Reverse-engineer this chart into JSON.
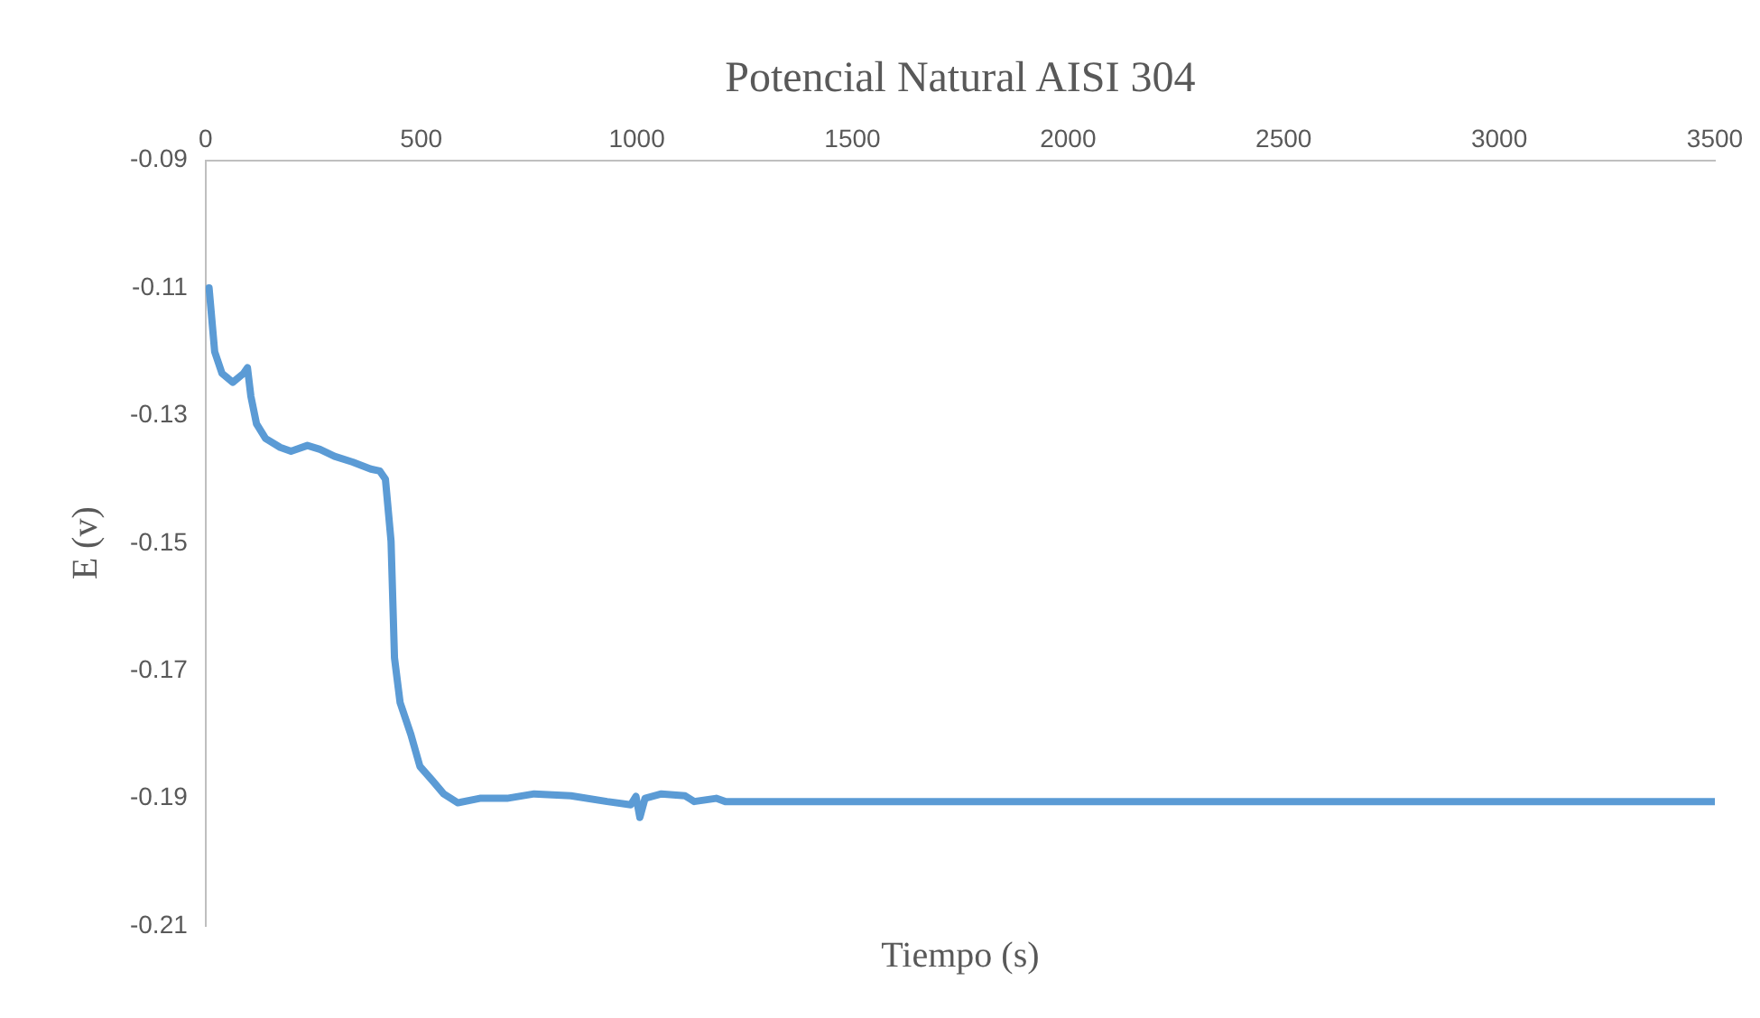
{
  "chart_data": {
    "type": "line",
    "title": "Potencial Natural AISI 304",
    "xlabel": "Tiempo (s)",
    "ylabel": "E (v)",
    "xlim": [
      0,
      3500
    ],
    "xticks": [
      0,
      500,
      1000,
      1500,
      2000,
      2500,
      3000,
      3500
    ],
    "ylim": [
      -0.21,
      -0.09
    ],
    "yticks": [
      -0.21,
      -0.19,
      -0.17,
      -0.15,
      -0.13,
      -0.11,
      -0.09
    ],
    "grid": false,
    "legend": false,
    "marker": "none",
    "line_style": "solid",
    "series": [
      {
        "color": "#5b9bd5",
        "x": [
          8,
          21,
          38,
          63,
          88,
          97,
          105,
          118,
          139,
          173,
          198,
          236,
          265,
          299,
          341,
          383,
          404,
          417,
          430,
          438,
          451,
          476,
          497,
          527,
          552,
          585,
          636,
          699,
          762,
          847,
          931,
          986,
          998,
          1007,
          1019,
          1057,
          1112,
          1133,
          1184,
          1205,
          3500
        ],
        "values": [
          -0.11,
          -0.12,
          -0.1234,
          -0.1248,
          -0.1234,
          -0.1225,
          -0.127,
          -0.1313,
          -0.1336,
          -0.135,
          -0.1356,
          -0.1347,
          -0.1353,
          -0.1364,
          -0.1373,
          -0.1384,
          -0.1387,
          -0.14,
          -0.1497,
          -0.168,
          -0.175,
          -0.18,
          -0.185,
          -0.1873,
          -0.1893,
          -0.1907,
          -0.19,
          -0.19,
          -0.1893,
          -0.1896,
          -0.1905,
          -0.191,
          -0.1897,
          -0.193,
          -0.19,
          -0.1893,
          -0.1896,
          -0.1905,
          -0.19,
          -0.1905,
          -0.1905
        ]
      }
    ]
  }
}
